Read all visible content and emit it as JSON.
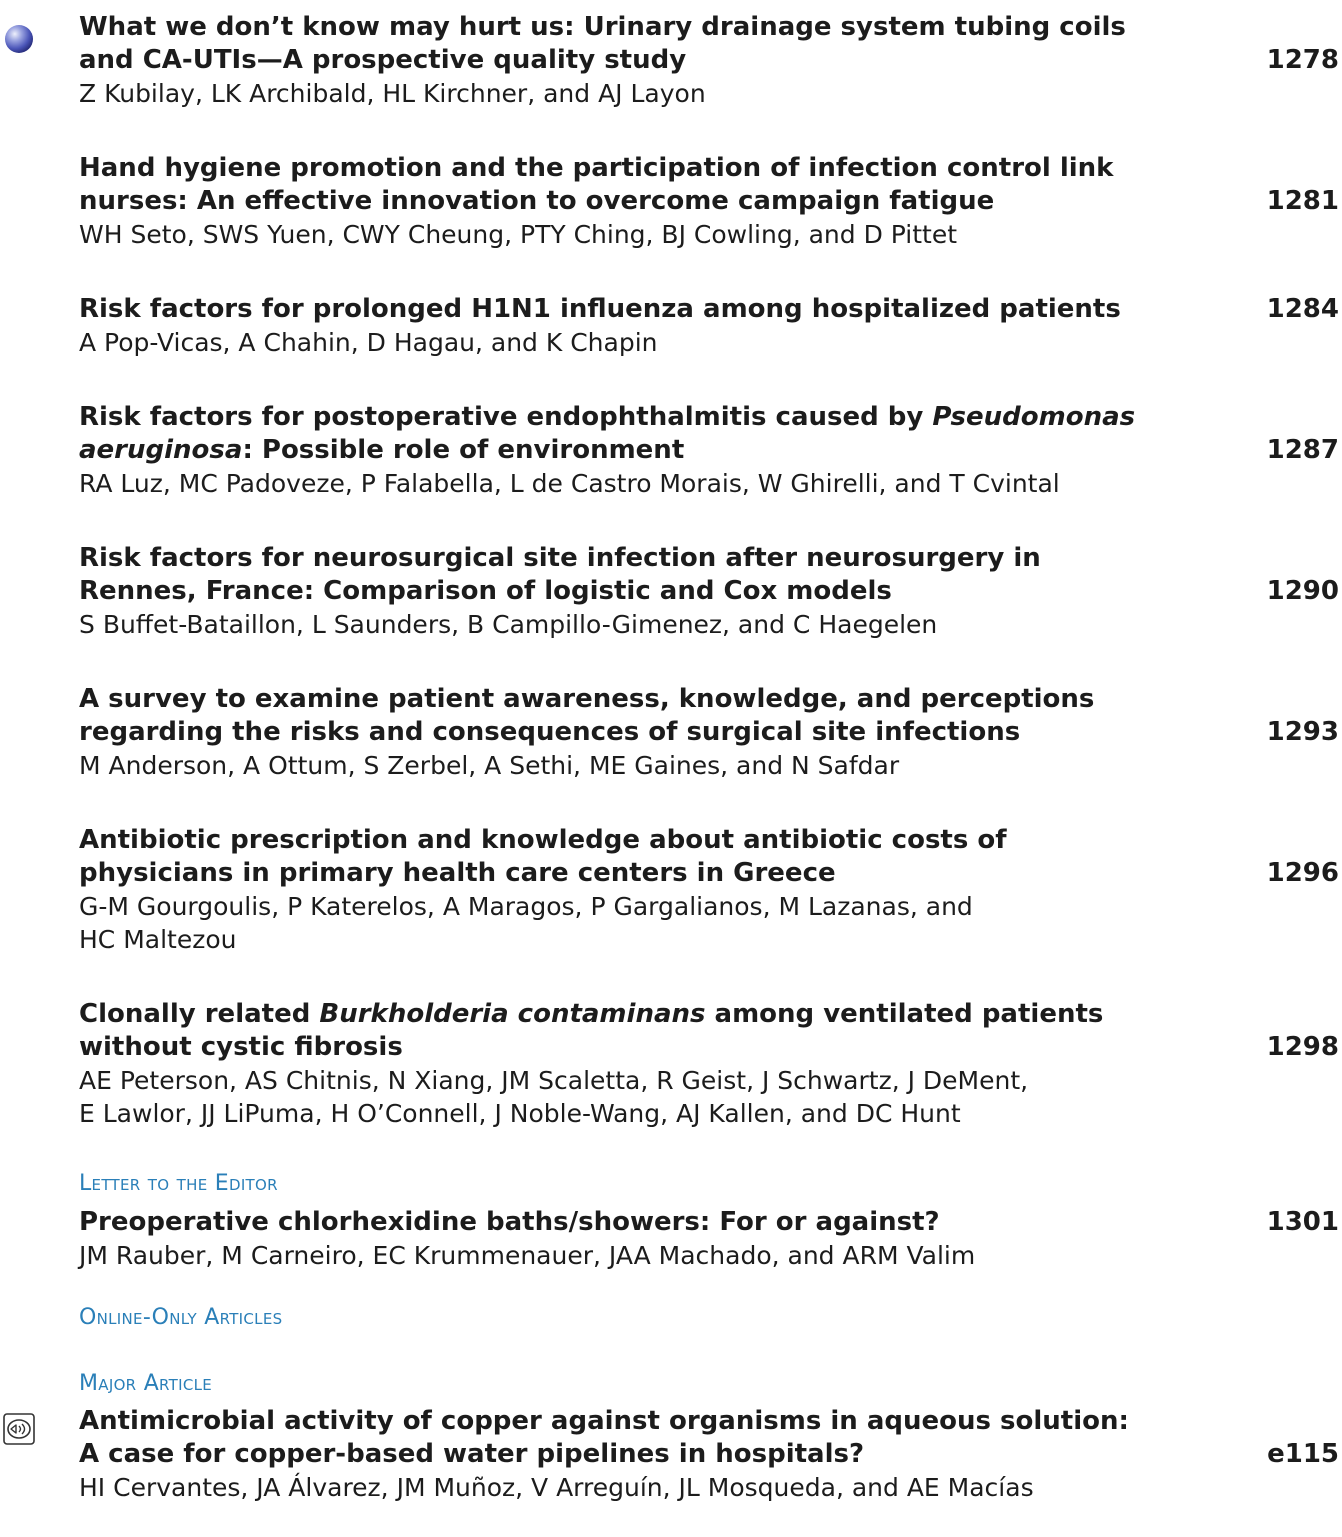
{
  "entries": [
    {
      "title_lines": [
        "What we don’t know may hurt us: Urinary drainage system tubing coils",
        "and CA-UTIs—A prospective quality study"
      ],
      "page": "1278",
      "author_lines": [
        "Z Kubilay, LK Archibald, HL Kirchner, and AJ Layon"
      ],
      "icon": "sphere-icon"
    },
    {
      "title_lines": [
        "Hand hygiene promotion and the participation of infection control link",
        "nurses: An effective innovation to overcome campaign fatigue"
      ],
      "page": "1281",
      "author_lines": [
        "WH Seto, SWS Yuen, CWY Cheung, PTY Ching, BJ Cowling, and D Pittet"
      ]
    },
    {
      "title_lines": [
        "Risk factors for prolonged H1N1 influenza among hospitalized patients"
      ],
      "page": "1284",
      "author_lines": [
        "A Pop-Vicas, A Chahin, D Hagau, and K Chapin"
      ]
    },
    {
      "title_lines": [
        "Risk factors for postoperative endophthalmitis caused by ",
        "Pseudomonas",
        "aeruginosa",
        ": Possible role of environment"
      ],
      "page": "1287",
      "author_lines": [
        "RA Luz, MC Padoveze, P Falabella, L de Castro Morais, W Ghirelli, and T Cvintal"
      ]
    },
    {
      "title_lines": [
        "Risk factors for neurosurgical site infection after neurosurgery in",
        "Rennes, France: Comparison of logistic and Cox models"
      ],
      "page": "1290",
      "author_lines": [
        "S Buffet-Bataillon, L Saunders, B Campillo-Gimenez, and C Haegelen"
      ]
    },
    {
      "title_lines": [
        "A survey to examine patient awareness, knowledge, and perceptions",
        "regarding the risks and consequences of surgical site infections"
      ],
      "page": "1293",
      "author_lines": [
        "M Anderson, A Ottum, S Zerbel, A Sethi, ME Gaines, and N Safdar"
      ]
    },
    {
      "title_lines": [
        "Antibiotic prescription and knowledge about antibiotic costs of",
        "physicians in primary health care centers in Greece"
      ],
      "page": "1296",
      "author_lines": [
        "G-M Gourgoulis, P Katerelos, A Maragos, P Gargalianos, M Lazanas, and",
        "HC Maltezou"
      ]
    },
    {
      "title_lines": [
        "Clonally related ",
        "Burkholderia contaminans",
        " among ventilated patients",
        "without cystic fibrosis"
      ],
      "page": "1298",
      "author_lines": [
        "AE Peterson, AS Chitnis, N Xiang, JM Scaletta, R Geist, J Schwartz, J DeMent,",
        "E Lawlor, JJ LiPuma, H O’Connell, J Noble-Wang, AJ Kallen, and DC Hunt"
      ]
    },
    {
      "title_lines": [
        "Preoperative chlorhexidine baths/showers: For or against?"
      ],
      "page": "1301",
      "author_lines": [
        "JM Rauber, M Carneiro, EC Krummenauer, JAA Machado, and ARM Valim"
      ]
    },
    {
      "title_lines": [
        "Antimicrobial activity of copper against organisms in aqueous solution:",
        "A case for copper-based water pipelines in hospitals?"
      ],
      "page": "e115",
      "author_lines": [
        "HI Cervantes, JA Álvarez, JM Muñoz, V Arreguín, JL Mosqueda, and AE Macías"
      ],
      "icon": "speaker-icon"
    }
  ],
  "sections": {
    "letter_to_editor": "Letter to the Editor",
    "online_only": "Online-Only Articles",
    "major_article": "Major Article"
  },
  "colors": {
    "text": "#1c1c1c",
    "section_heading": "#2a7fb8"
  }
}
